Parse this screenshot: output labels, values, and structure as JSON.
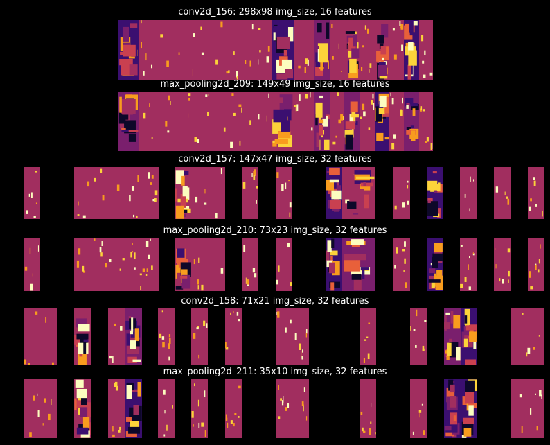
{
  "figure": {
    "background": "#000000",
    "colormap": "inferno",
    "palette": [
      "#0d0829",
      "#3b0f70",
      "#7a1f6d",
      "#a12e5f",
      "#c94050",
      "#e8603a",
      "#f89c1e",
      "#fcd33a",
      "#fcfdbf"
    ]
  },
  "chart_data": [
    {
      "type": "heatmap",
      "title": "conv2d_156: 298x98 img_size, 16 features",
      "layer": "conv2d_156",
      "img_size": "298x98",
      "features": 16,
      "panels": 2,
      "strips_per_panel": 8,
      "wide_strips": [
        1,
        2
      ],
      "tall_panels": []
    },
    {
      "type": "heatmap",
      "title": "max_pooling2d_209: 149x49 img_size, 16 features",
      "layer": "max_pooling2d_209",
      "img_size": "149x49",
      "features": 16,
      "panels": 2,
      "strips_per_panel": 8,
      "wide_strips": [
        1,
        2
      ],
      "tall_panels": []
    },
    {
      "type": "heatmap",
      "title": "conv2d_157: 147x47 img_size, 32 features",
      "layer": "conv2d_157",
      "img_size": "147x47",
      "features": 32,
      "panels": 16,
      "strips_per_panel": 2,
      "wide_strips": [],
      "tall_panels": []
    },
    {
      "type": "heatmap",
      "title": "max_pooling2d_210: 73x23 img_size, 32 features",
      "layer": "max_pooling2d_210",
      "img_size": "73x23",
      "features": 32,
      "panels": 16,
      "strips_per_panel": 2,
      "wide_strips": [],
      "tall_panels": []
    },
    {
      "type": "heatmap",
      "title": "conv2d_158: 71x21 img_size, 32 features",
      "layer": "conv2d_158",
      "img_size": "71x21",
      "features": 32,
      "panels": 16,
      "strips_per_panel": 2,
      "wide_strips": [],
      "tall_panels": [
        0,
        8,
        15
      ]
    },
    {
      "type": "heatmap",
      "title": "max_pooling2d_211: 35x10 img_size, 32 features",
      "layer": "max_pooling2d_211",
      "img_size": "35x10",
      "features": 32,
      "panels": 16,
      "strips_per_panel": 2,
      "wide_strips": [],
      "tall_panels": [
        0,
        8,
        15
      ]
    }
  ]
}
